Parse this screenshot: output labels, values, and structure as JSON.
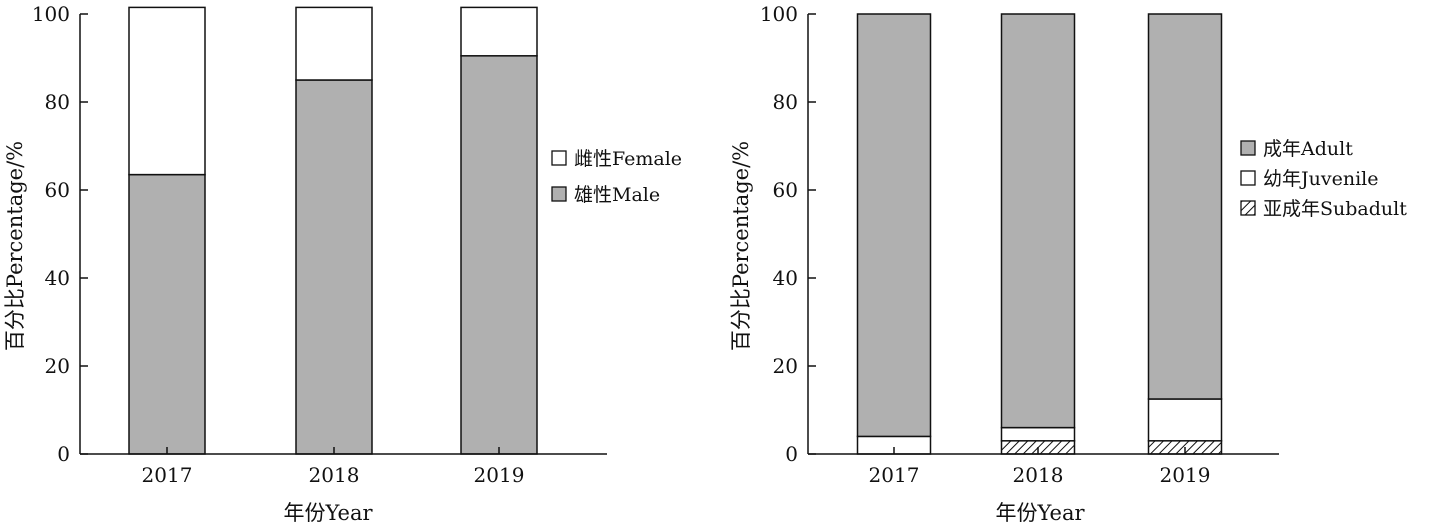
{
  "chart_data": [
    {
      "type": "bar",
      "stacked": true,
      "categories": [
        "2017",
        "2018",
        "2019"
      ],
      "series": [
        {
          "name": "雄性Male",
          "values": [
            63.5,
            85,
            90.5
          ],
          "color": "#b0b0b0",
          "pattern": "solid"
        },
        {
          "name": "雌性Female",
          "values": [
            38,
            16.5,
            11
          ],
          "color": "#ffffff",
          "pattern": "solid"
        }
      ],
      "legend_order": [
        1,
        0
      ],
      "xlabel": "年份Year",
      "ylabel": "百分比Percentage/%",
      "ylim": [
        0,
        100
      ],
      "yticks": [
        "0",
        "20",
        "40",
        "60",
        "80",
        "100"
      ],
      "grid": false,
      "legend_position": "right"
    },
    {
      "type": "bar",
      "stacked": true,
      "categories": [
        "2017",
        "2018",
        "2019"
      ],
      "series": [
        {
          "name": "亚成年Subadult",
          "values": [
            0,
            3,
            3
          ],
          "color": "#ffffff",
          "pattern": "hatch"
        },
        {
          "name": "幼年Juvenile",
          "values": [
            4,
            3,
            9.5
          ],
          "color": "#ffffff",
          "pattern": "solid"
        },
        {
          "name": "成年Adult",
          "values": [
            96,
            94,
            87.5
          ],
          "color": "#b0b0b0",
          "pattern": "solid"
        }
      ],
      "legend_order": [
        2,
        1,
        0
      ],
      "xlabel": "年份Year",
      "ylabel": "百分比Percentage/%",
      "ylim": [
        0,
        100
      ],
      "yticks": [
        "0",
        "20",
        "40",
        "60",
        "80",
        "100"
      ],
      "grid": false,
      "legend_position": "right"
    }
  ]
}
